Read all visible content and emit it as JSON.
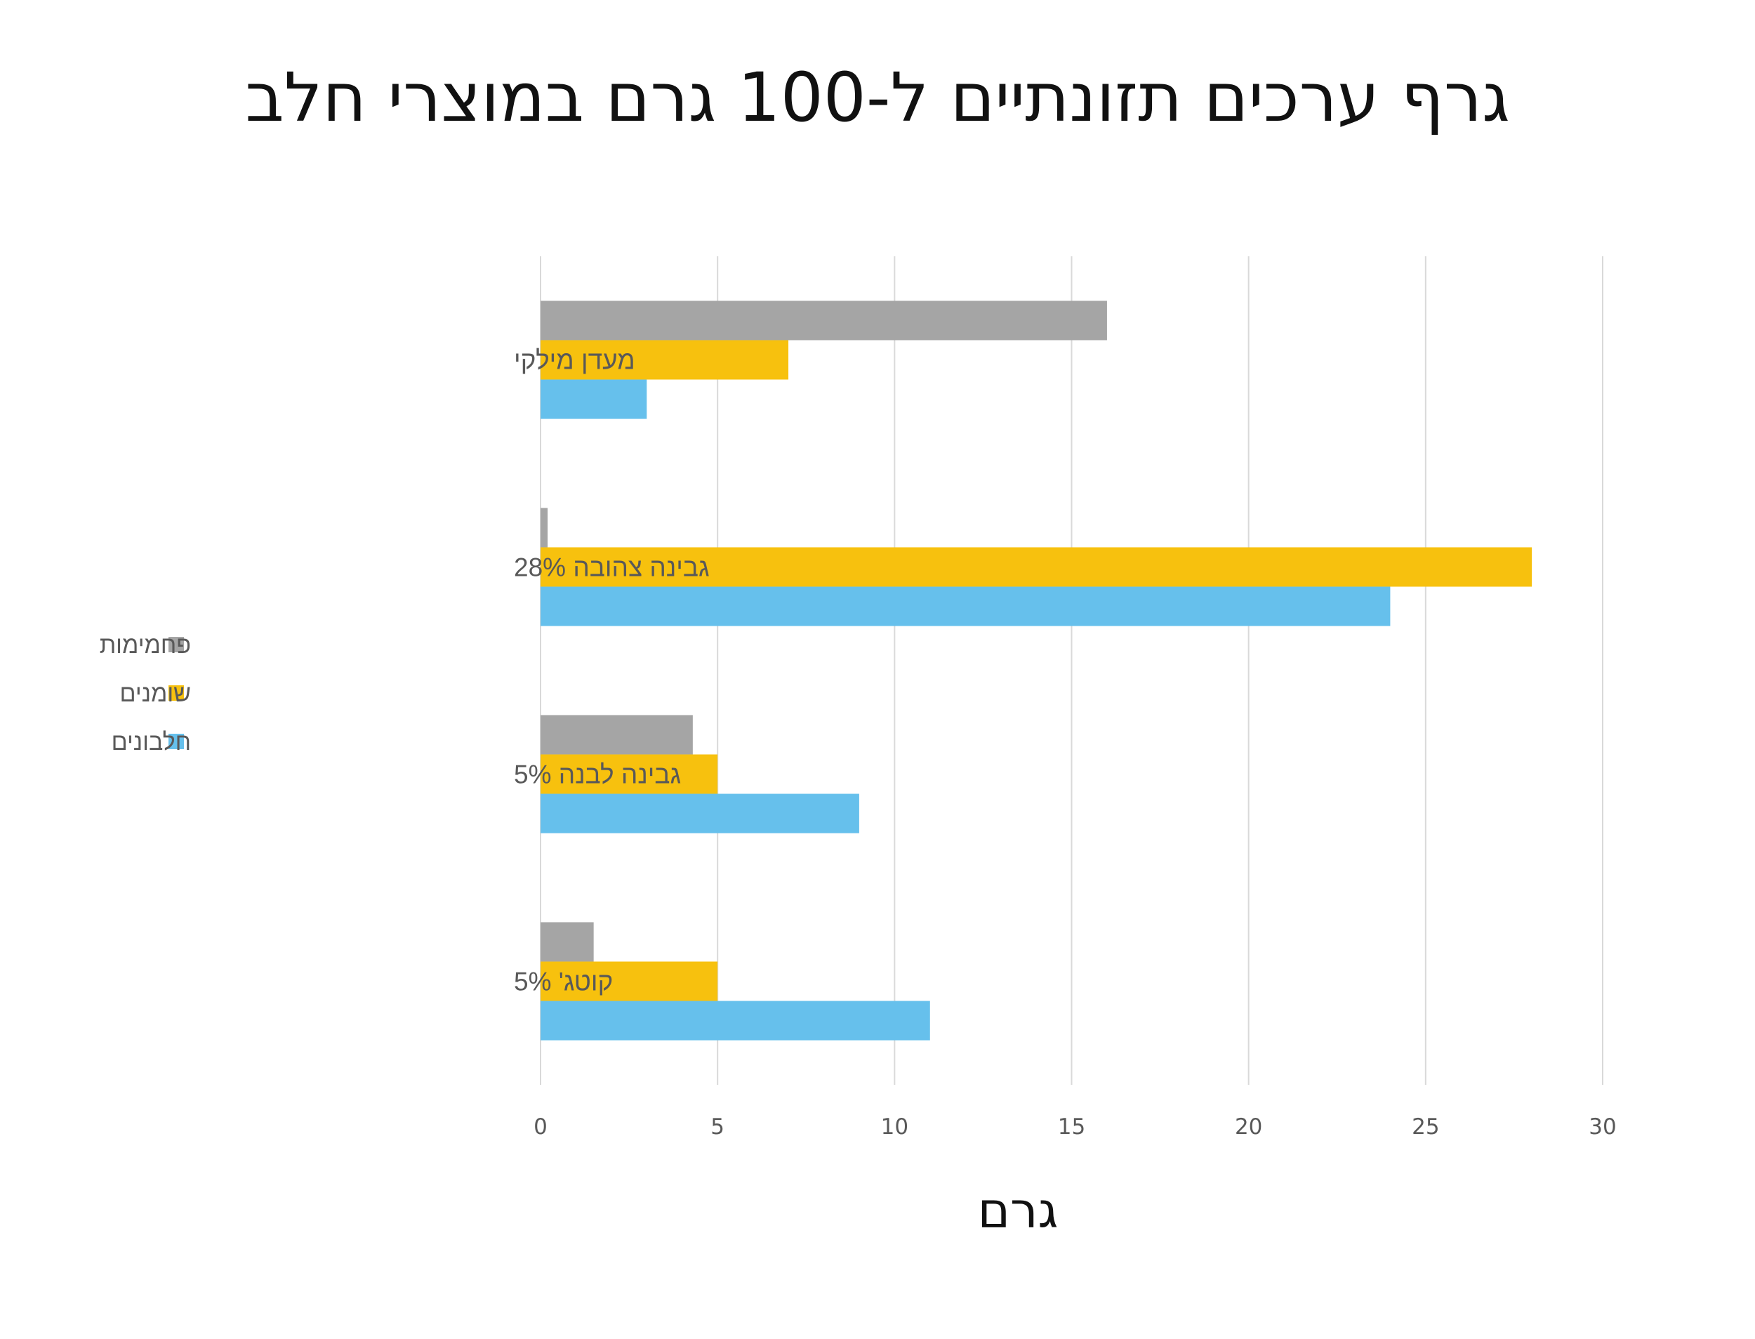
{
  "chart_data": {
    "type": "bar",
    "orientation": "horizontal",
    "title": "גרף ערכים תזונתיים ל-100 גרם במוצרי חלב",
    "xlabel": "גרם",
    "ylabel": "",
    "xlim": [
      0,
      30
    ],
    "xticks": [
      0,
      5,
      10,
      15,
      20,
      25,
      30
    ],
    "grid": true,
    "legend_position": "left",
    "categories": [
      "מעדן מילקי",
      "גבינה צהובה 28%",
      "גבינה לבנה 5%",
      "קוטג' 5%"
    ],
    "series": [
      {
        "name": "פחמימות",
        "color": "#A5A5A5",
        "values": [
          16,
          0.2,
          4.3,
          1.5
        ]
      },
      {
        "name": "שומנים",
        "color": "#F7C10E",
        "values": [
          7,
          28,
          5,
          5
        ]
      },
      {
        "name": "חלבונים",
        "color": "#66C0EC",
        "values": [
          3,
          24,
          9,
          11
        ]
      }
    ]
  }
}
